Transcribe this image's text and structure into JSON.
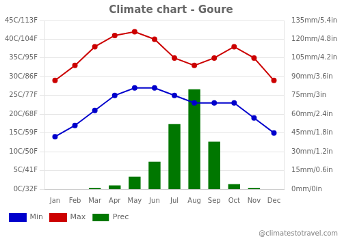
{
  "chart_data": {
    "type": "bar",
    "title": "Climate chart - Goure",
    "categories": [
      "Jan",
      "Feb",
      "Mar",
      "Apr",
      "May",
      "Jun",
      "Jul",
      "Aug",
      "Sep",
      "Oct",
      "Nov",
      "Dec"
    ],
    "series": [
      {
        "name": "Prec",
        "type": "bar",
        "axis": "y2",
        "color": "#007700",
        "values": [
          0,
          0,
          1,
          3,
          10,
          22,
          52,
          80,
          38,
          4,
          1,
          0
        ]
      },
      {
        "name": "Min",
        "type": "line",
        "color": "#0000cc",
        "marker": "circle",
        "line_style": "solid",
        "values": [
          14,
          17,
          21,
          25,
          27,
          27,
          25,
          23,
          23,
          23,
          19,
          15
        ]
      },
      {
        "name": "Max",
        "type": "line",
        "color": "#cc0000",
        "marker": "circle",
        "line_style": "solid",
        "values": [
          29,
          33,
          38,
          41,
          42,
          40,
          35,
          33,
          35,
          38,
          35,
          29
        ]
      }
    ],
    "ylim": [
      0,
      45
    ],
    "yticks": [
      {
        "value": 0,
        "label": "0C/32F"
      },
      {
        "value": 5,
        "label": "5C/41F"
      },
      {
        "value": 10,
        "label": "10C/50F"
      },
      {
        "value": 15,
        "label": "15C/59F"
      },
      {
        "value": 20,
        "label": "20C/68F"
      },
      {
        "value": 25,
        "label": "25C/77F"
      },
      {
        "value": 30,
        "label": "30C/86F"
      },
      {
        "value": 35,
        "label": "35C/95F"
      },
      {
        "value": 40,
        "label": "40C/104F"
      },
      {
        "value": 45,
        "label": "45C/113F"
      }
    ],
    "y2lim": [
      0,
      135
    ],
    "y2ticks": [
      {
        "value": 0,
        "label": "0mm/0in"
      },
      {
        "value": 15,
        "label": "15mm/0.6in"
      },
      {
        "value": 30,
        "label": "30mm/1.2in"
      },
      {
        "value": 45,
        "label": "45mm/1.8in"
      },
      {
        "value": 60,
        "label": "60mm/2.4in"
      },
      {
        "value": 75,
        "label": "75mm/3in"
      },
      {
        "value": 90,
        "label": "90mm/3.6in"
      },
      {
        "value": 105,
        "label": "105mm/4.2in"
      },
      {
        "value": 120,
        "label": "120mm/4.8in"
      },
      {
        "value": 135,
        "label": "135mm/5.4in"
      }
    ],
    "grid": true,
    "legend": "lower left",
    "annotations": [
      "@climatestotravel.com"
    ]
  }
}
